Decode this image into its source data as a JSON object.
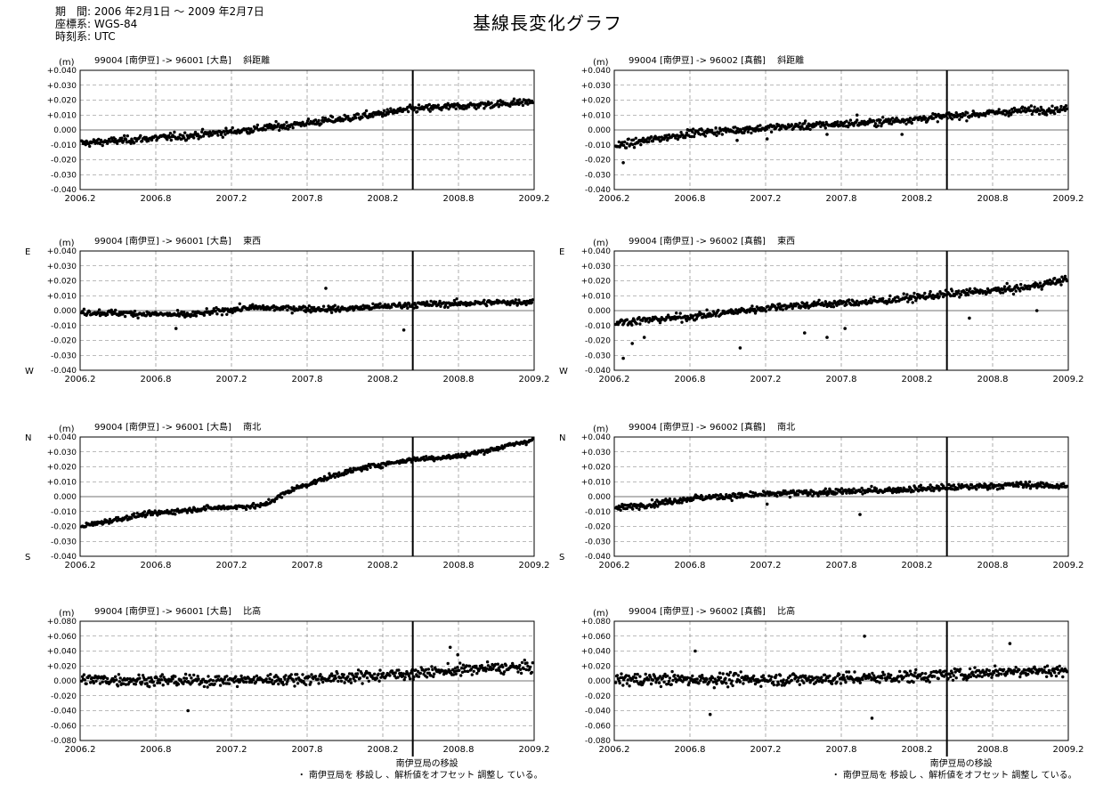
{
  "header": {
    "period": "期　間: 2006 年2月1日 ～ 2009 年2月7日",
    "coordinate_system": "座標系: WGS-84",
    "time_system": "時刻系: UTC"
  },
  "title": "基線長変化グラフ",
  "footer": {
    "event_label": "南伊豆局の移設",
    "event_note": "・ 南伊豆局を 移設し 、解析値をオフセット 調整し ている。"
  },
  "chart_data": [
    {
      "type": "scatter",
      "unit": "(m)",
      "title": "99004 [南伊豆] -> 96001 [大島]　 斜距離",
      "x_ticks": [
        "2006.2",
        "2006.8",
        "2007.2",
        "2007.8",
        "2008.2",
        "2008.8",
        "2009.2"
      ],
      "y_ticks": [
        "+0.040",
        "+0.030",
        "+0.020",
        "+0.010",
        "0.000",
        "-0.010",
        "-0.020",
        "-0.030",
        "-0.040"
      ],
      "ylim": [
        -0.04,
        0.04
      ],
      "xlim": [
        2006.08,
        2009.11
      ],
      "event_x": 2008.3,
      "upper_label": "",
      "lower_label": "",
      "trend": [
        [
          2006.08,
          -0.009
        ],
        [
          2006.5,
          -0.006
        ],
        [
          2006.8,
          -0.004
        ],
        [
          2007.2,
          0.0
        ],
        [
          2007.8,
          0.007
        ],
        [
          2008.3,
          0.014
        ],
        [
          2008.8,
          0.017
        ],
        [
          2009.1,
          0.019
        ]
      ],
      "noise": 0.003,
      "outliers": [],
      "footer": false
    },
    {
      "type": "scatter",
      "unit": "(m)",
      "title": "99004 [南伊豆] -> 96002 [真鶴]　 斜距離",
      "x_ticks": [
        "2006.2",
        "2006.8",
        "2007.2",
        "2007.8",
        "2008.2",
        "2008.8",
        "2009.2"
      ],
      "y_ticks": [
        "+0.040",
        "+0.030",
        "+0.020",
        "+0.010",
        "0.000",
        "-0.010",
        "-0.020",
        "-0.030",
        "-0.040"
      ],
      "ylim": [
        -0.04,
        0.04
      ],
      "xlim": [
        2006.08,
        2009.11
      ],
      "event_x": 2008.3,
      "upper_label": "",
      "lower_label": "",
      "trend": [
        [
          2006.08,
          -0.011
        ],
        [
          2006.3,
          -0.007
        ],
        [
          2006.6,
          -0.002
        ],
        [
          2007.2,
          0.002
        ],
        [
          2007.8,
          0.005
        ],
        [
          2008.3,
          0.009
        ],
        [
          2008.8,
          0.013
        ],
        [
          2009.1,
          0.014
        ]
      ],
      "noise": 0.003,
      "outliers": [
        [
          2006.14,
          -0.022
        ],
        [
          2006.9,
          -0.007
        ],
        [
          2007.1,
          -0.006
        ],
        [
          2007.5,
          -0.003
        ],
        [
          2008.0,
          -0.003
        ],
        [
          2007.7,
          0.01
        ]
      ],
      "footer": false
    },
    {
      "type": "scatter",
      "unit": "(m)",
      "title": "99004 [南伊豆] -> 96001 [大島]　 東西",
      "x_ticks": [
        "2006.2",
        "2006.8",
        "2007.2",
        "2007.8",
        "2008.2",
        "2008.8",
        "2009.2"
      ],
      "y_ticks": [
        "+0.040",
        "+0.030",
        "+0.020",
        "+0.010",
        "0.000",
        "-0.010",
        "-0.020",
        "-0.030",
        "-0.040"
      ],
      "ylim": [
        -0.04,
        0.04
      ],
      "xlim": [
        2006.08,
        2009.11
      ],
      "event_x": 2008.3,
      "upper_label": "E",
      "lower_label": "W",
      "trend": [
        [
          2006.08,
          -0.001
        ],
        [
          2006.8,
          -0.003
        ],
        [
          2007.2,
          0.002
        ],
        [
          2007.8,
          0.001
        ],
        [
          2008.3,
          0.004
        ],
        [
          2009.1,
          0.006
        ]
      ],
      "noise": 0.0025,
      "outliers": [
        [
          2007.72,
          0.015
        ],
        [
          2008.24,
          -0.013
        ],
        [
          2006.72,
          -0.012
        ]
      ],
      "footer": false
    },
    {
      "type": "scatter",
      "unit": "(m)",
      "title": "99004 [南伊豆] -> 96002 [真鶴]　 東西",
      "x_ticks": [
        "2006.2",
        "2006.8",
        "2007.2",
        "2007.8",
        "2008.2",
        "2008.8",
        "2009.2"
      ],
      "y_ticks": [
        "+0.040",
        "+0.030",
        "+0.020",
        "+0.010",
        "0.000",
        "-0.010",
        "-0.020",
        "-0.030",
        "-0.040"
      ],
      "ylim": [
        -0.04,
        0.04
      ],
      "xlim": [
        2006.08,
        2009.11
      ],
      "event_x": 2008.3,
      "upper_label": "E",
      "lower_label": "W",
      "trend": [
        [
          2006.08,
          -0.008
        ],
        [
          2006.6,
          -0.004
        ],
        [
          2007.2,
          0.003
        ],
        [
          2007.8,
          0.006
        ],
        [
          2008.3,
          0.011
        ],
        [
          2008.8,
          0.015
        ],
        [
          2009.1,
          0.021
        ]
      ],
      "noise": 0.003,
      "outliers": [
        [
          2006.14,
          -0.032
        ],
        [
          2006.2,
          -0.022
        ],
        [
          2006.28,
          -0.018
        ],
        [
          2006.92,
          -0.025
        ],
        [
          2007.35,
          -0.015
        ],
        [
          2007.5,
          -0.018
        ],
        [
          2007.62,
          -0.012
        ],
        [
          2008.45,
          -0.005
        ],
        [
          2008.9,
          0.0
        ]
      ],
      "footer": false
    },
    {
      "type": "scatter",
      "unit": "(m)",
      "title": "99004 [南伊豆] -> 96001 [大島]　 南北",
      "x_ticks": [
        "2006.2",
        "2006.8",
        "2007.2",
        "2007.8",
        "2008.2",
        "2008.8",
        "2009.2"
      ],
      "y_ticks": [
        "+0.040",
        "+0.030",
        "+0.020",
        "+0.010",
        "0.000",
        "-0.010",
        "-0.020",
        "-0.030",
        "-0.040"
      ],
      "ylim": [
        -0.04,
        0.04
      ],
      "xlim": [
        2006.08,
        2009.11
      ],
      "event_x": 2008.3,
      "upper_label": "N",
      "lower_label": "S",
      "trend": [
        [
          2006.08,
          -0.02
        ],
        [
          2006.5,
          -0.012
        ],
        [
          2006.9,
          -0.008
        ],
        [
          2007.3,
          -0.006
        ],
        [
          2007.5,
          0.005
        ],
        [
          2007.8,
          0.015
        ],
        [
          2008.0,
          0.02
        ],
        [
          2008.3,
          0.025
        ],
        [
          2008.6,
          0.027
        ],
        [
          2008.8,
          0.031
        ],
        [
          2009.1,
          0.038
        ]
      ],
      "noise": 0.002,
      "outliers": [],
      "footer": false
    },
    {
      "type": "scatter",
      "unit": "(m)",
      "title": "99004 [南伊豆] -> 96002 [真鶴]　 南北",
      "x_ticks": [
        "2006.2",
        "2006.8",
        "2007.2",
        "2007.8",
        "2008.2",
        "2008.8",
        "2009.2"
      ],
      "y_ticks": [
        "+0.040",
        "+0.030",
        "+0.020",
        "+0.010",
        "0.000",
        "-0.010",
        "-0.020",
        "-0.030",
        "-0.040"
      ],
      "ylim": [
        -0.04,
        0.04
      ],
      "xlim": [
        2006.08,
        2009.11
      ],
      "event_x": 2008.3,
      "upper_label": "N",
      "lower_label": "S",
      "trend": [
        [
          2006.08,
          -0.008
        ],
        [
          2006.4,
          -0.004
        ],
        [
          2006.6,
          -0.001
        ],
        [
          2007.2,
          0.002
        ],
        [
          2007.8,
          0.004
        ],
        [
          2008.3,
          0.006
        ],
        [
          2008.8,
          0.008
        ],
        [
          2009.1,
          0.007
        ]
      ],
      "noise": 0.0025,
      "outliers": [
        [
          2007.72,
          -0.012
        ],
        [
          2007.1,
          -0.005
        ]
      ],
      "footer": false
    },
    {
      "type": "scatter",
      "unit": "(m)",
      "title": "99004 [南伊豆] -> 96001 [大島]　 比高",
      "x_ticks": [
        "2006.2",
        "2006.8",
        "2007.2",
        "2007.8",
        "2008.2",
        "2008.8",
        "2009.2"
      ],
      "y_ticks": [
        "+0.080",
        "+0.060",
        "+0.040",
        "+0.020",
        "0.000",
        "-0.020",
        "-0.040",
        "-0.060",
        "-0.080"
      ],
      "ylim": [
        -0.08,
        0.08
      ],
      "xlim": [
        2006.08,
        2009.11
      ],
      "event_x": 2008.3,
      "upper_label": "",
      "lower_label": "",
      "trend": [
        [
          2006.08,
          0.002
        ],
        [
          2006.8,
          0.0
        ],
        [
          2007.2,
          0.001
        ],
        [
          2007.8,
          0.004
        ],
        [
          2008.3,
          0.01
        ],
        [
          2008.8,
          0.017
        ],
        [
          2009.1,
          0.018
        ]
      ],
      "noise": 0.009,
      "outliers": [
        [
          2006.8,
          -0.04
        ],
        [
          2008.55,
          0.045
        ],
        [
          2008.6,
          0.035
        ]
      ],
      "footer": true
    },
    {
      "type": "scatter",
      "unit": "(m)",
      "title": "99004 [南伊豆] -> 96002 [真鶴]　 比高",
      "x_ticks": [
        "2006.2",
        "2006.8",
        "2007.2",
        "2007.8",
        "2008.2",
        "2008.8",
        "2009.2"
      ],
      "y_ticks": [
        "+0.080",
        "+0.060",
        "+0.040",
        "+0.020",
        "0.000",
        "-0.020",
        "-0.040",
        "-0.060",
        "-0.080"
      ],
      "ylim": [
        -0.08,
        0.08
      ],
      "xlim": [
        2006.08,
        2009.11
      ],
      "event_x": 2008.3,
      "upper_label": "",
      "lower_label": "",
      "trend": [
        [
          2006.08,
          0.002
        ],
        [
          2006.8,
          0.002
        ],
        [
          2007.2,
          0.002
        ],
        [
          2007.8,
          0.004
        ],
        [
          2008.3,
          0.008
        ],
        [
          2008.8,
          0.014
        ],
        [
          2009.1,
          0.013
        ]
      ],
      "noise": 0.01,
      "outliers": [
        [
          2006.62,
          0.04
        ],
        [
          2006.72,
          -0.045
        ],
        [
          2007.75,
          0.06
        ],
        [
          2007.8,
          -0.05
        ],
        [
          2008.72,
          0.05
        ]
      ],
      "footer": true
    }
  ]
}
